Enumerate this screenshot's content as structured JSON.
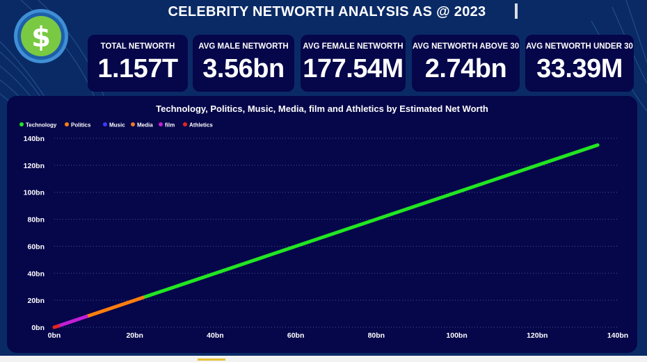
{
  "page": {
    "title": "CELEBRITY NETWORTH ANALYSIS AS @ 2023",
    "logo_icon": "dollar-sign-icon"
  },
  "kpis": [
    {
      "label": "TOTAL NETWORTH",
      "value": "1.157T"
    },
    {
      "label": "AVG MALE NETWORTH",
      "value": "3.56bn"
    },
    {
      "label": "AVG FEMALE NETWORTH",
      "value": "177.54M"
    },
    {
      "label": "AVG NETWORTH ABOVE 30",
      "value": "2.74bn"
    },
    {
      "label": "AVG NETWORTH UNDER 30",
      "value": "33.39M"
    }
  ],
  "colors": {
    "background": "#0a2a66",
    "panel": "#06064a",
    "accent_green": "#7ac943"
  },
  "chart_data": {
    "type": "line",
    "title": "Technology, Politics, Music, Media, film and Athletics by Estimated Net Worth",
    "xlim": [
      0,
      140
    ],
    "ylim": [
      0,
      140
    ],
    "x_ticks": [
      "0bn",
      "20bn",
      "40bn",
      "60bn",
      "80bn",
      "100bn",
      "120bn",
      "140bn"
    ],
    "y_ticks": [
      "0bn",
      "20bn",
      "40bn",
      "60bn",
      "80bn",
      "100bn",
      "120bn",
      "140bn"
    ],
    "grid": true,
    "legend_position": "top-left",
    "series": [
      {
        "name": "Technology",
        "color": "#22e622",
        "x": [
          22,
          135
        ],
        "y": [
          22,
          135
        ]
      },
      {
        "name": "Politics",
        "color": "#ff7f0e",
        "x": [
          8,
          22
        ],
        "y": [
          8,
          22
        ]
      },
      {
        "name": "Music",
        "color": "#3b3bff",
        "x": [],
        "y": []
      },
      {
        "name": "Media",
        "color": "#f0782a",
        "x": [],
        "y": []
      },
      {
        "name": "film",
        "color": "#c21fd6",
        "x": [
          1,
          8
        ],
        "y": [
          1,
          8
        ]
      },
      {
        "name": "Athletics",
        "color": "#e8231e",
        "x": [
          0,
          1
        ],
        "y": [
          0,
          1
        ]
      }
    ]
  }
}
